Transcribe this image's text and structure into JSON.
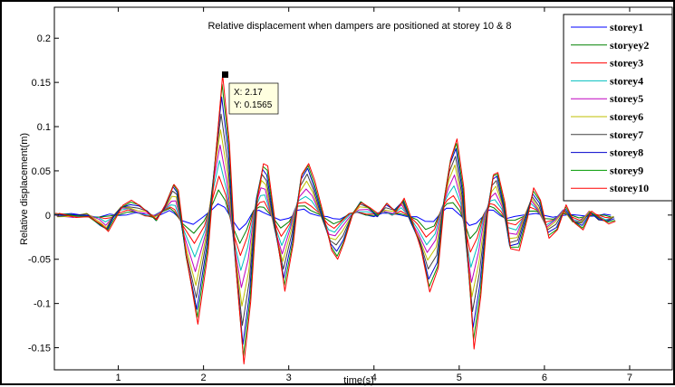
{
  "chart_data": {
    "type": "line",
    "title": "Relative displacement when dampers are positioned at storey 10 & 8",
    "xlabel": "time(s)",
    "ylabel": "Relative displacement(m)",
    "xlim": [
      0.25,
      7.5
    ],
    "ylim": [
      -0.175,
      0.235
    ],
    "x_ticks": [
      1,
      2,
      3,
      4,
      5,
      6,
      7
    ],
    "y_ticks": [
      -0.15,
      -0.1,
      -0.05,
      0,
      0.05,
      0.1,
      0.15,
      0.2
    ],
    "x_tick_labels": [
      "1",
      "2",
      "3",
      "4",
      "5",
      "6",
      "7"
    ],
    "y_tick_labels": [
      "-0.15",
      "-0.1",
      "-0.05",
      "0",
      "0.05",
      "0.1",
      "0.15",
      "0.2"
    ],
    "grid": false,
    "legend_position": "top-right",
    "datatip": {
      "x": 2.17,
      "y": 0.1565,
      "x_label": "X: 2.17",
      "y_label": "Y: 0.1565"
    },
    "envelope": {
      "x": [
        0.25,
        0.45,
        0.6,
        0.75,
        0.83,
        0.9,
        1.0,
        1.1,
        1.2,
        1.3,
        1.4,
        1.5,
        1.6,
        1.65,
        1.75,
        1.88,
        2.0,
        2.1,
        2.17,
        2.25,
        2.33,
        2.42,
        2.5,
        2.58,
        2.65,
        2.7,
        2.8,
        2.9,
        3.0,
        3.05,
        3.1,
        3.18,
        3.25,
        3.35,
        3.45,
        3.52,
        3.6,
        3.7,
        3.8,
        3.9,
        4.0,
        4.1,
        4.2,
        4.3,
        4.4,
        4.5,
        4.6,
        4.7,
        4.78,
        4.85,
        4.92,
        5.0,
        5.05,
        5.12,
        5.2,
        5.28,
        5.35,
        5.4,
        5.48,
        5.55,
        5.65,
        5.75,
        5.82,
        5.9,
        6.0,
        6.1,
        6.2,
        6.3,
        6.4,
        6.5,
        6.6,
        6.7,
        6.78
      ],
      "y": [
        0.0,
        -0.002,
        0.0,
        -0.012,
        -0.02,
        -0.005,
        0.012,
        0.015,
        0.01,
        0.004,
        -0.005,
        0.01,
        0.035,
        0.03,
        -0.05,
        -0.125,
        -0.04,
        0.08,
        0.157,
        0.08,
        -0.06,
        -0.168,
        -0.1,
        0.02,
        0.06,
        0.055,
        -0.02,
        -0.085,
        -0.03,
        0.01,
        0.045,
        0.06,
        0.04,
        0.0,
        -0.04,
        -0.048,
        -0.03,
        0.0,
        0.015,
        0.01,
        0.0,
        0.012,
        0.005,
        0.02,
        -0.01,
        -0.04,
        -0.085,
        -0.06,
        0.02,
        0.065,
        0.088,
        0.03,
        -0.05,
        -0.15,
        -0.09,
        0.0,
        0.045,
        0.05,
        0.015,
        -0.04,
        -0.04,
        0.0,
        0.03,
        0.015,
        -0.025,
        -0.015,
        0.01,
        -0.01,
        -0.015,
        0.005,
        -0.005,
        -0.01,
        -0.005
      ]
    },
    "series": [
      {
        "name": "storey1",
        "color": "#0000ff",
        "scale": 0.09
      },
      {
        "name": "storyey2",
        "color": "#008000",
        "scale": 0.18
      },
      {
        "name": "storey3",
        "color": "#ff0000",
        "scale": 0.27
      },
      {
        "name": "storey4",
        "color": "#00bfbf",
        "scale": 0.38
      },
      {
        "name": "storey5",
        "color": "#bf00bf",
        "scale": 0.5
      },
      {
        "name": "storey6",
        "color": "#bfbf00",
        "scale": 0.62
      },
      {
        "name": "storey7",
        "color": "#404040",
        "scale": 0.74
      },
      {
        "name": "storey8",
        "color": "#0000cc",
        "scale": 0.86
      },
      {
        "name": "storey9",
        "color": "#009900",
        "scale": 0.94
      },
      {
        "name": "storey10",
        "color": "#ff0000",
        "scale": 1.0
      }
    ]
  }
}
